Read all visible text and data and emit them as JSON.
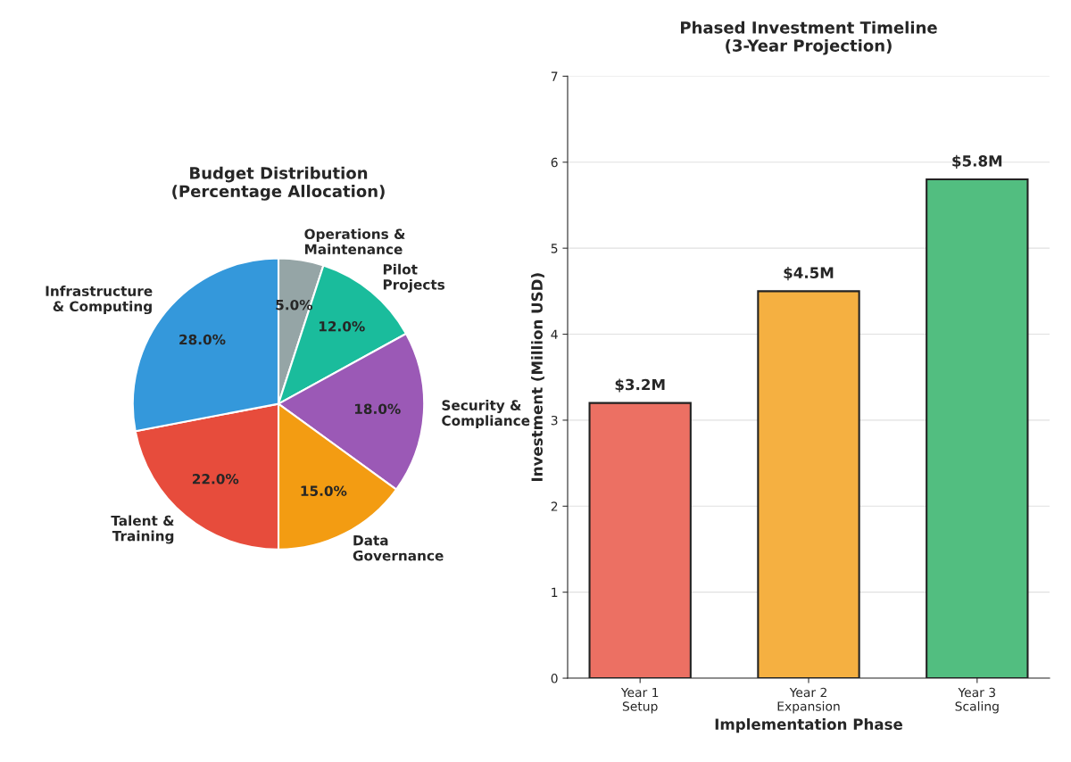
{
  "chart_data": [
    {
      "type": "pie",
      "title": "Budget Distribution\n(Percentage Allocation)",
      "categories": [
        "Operations &\nMaintenance",
        "Pilot\nProjects",
        "Security &\nCompliance",
        "Data\nGovernance",
        "Talent &\nTraining",
        "Infrastructure\n& Computing"
      ],
      "values": [
        5,
        12,
        18,
        15,
        22,
        28
      ],
      "colors": [
        "#95a5a6",
        "#1abc9c",
        "#9b59b6",
        "#f39c12",
        "#e74c3c",
        "#3498db"
      ],
      "value_labels": [
        "5.0%",
        "12.0%",
        "18.0%",
        "15.0%",
        "22.0%",
        "28.0%"
      ]
    },
    {
      "type": "bar",
      "title": "Phased Investment Timeline\n(3-Year Projection)",
      "categories": [
        "Year 1\nSetup",
        "Year 2\nExpansion",
        "Year 3\nScaling"
      ],
      "values": [
        3.2,
        4.5,
        5.8
      ],
      "colors": [
        "#ec7063",
        "#f5b041",
        "#52be80"
      ],
      "value_labels": [
        "$3.2M",
        "$4.5M",
        "$5.8M"
      ],
      "xlabel": "Implementation Phase",
      "ylabel": "Investment (Million USD)",
      "ylim": [
        0,
        7
      ],
      "yticks": [
        0,
        1,
        2,
        3,
        4,
        5,
        6,
        7
      ],
      "grid": "y"
    }
  ]
}
